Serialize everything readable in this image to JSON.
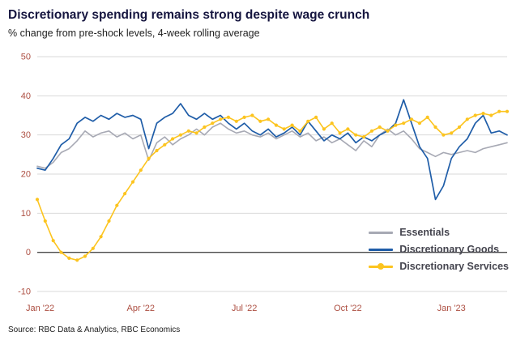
{
  "header": {
    "title": "Discretionary spending remains strong despite wage crunch",
    "subtitle": "% change from pre-shock levels, 4-week rolling average"
  },
  "source": "Source: RBC Data & Analytics, RBC Economics",
  "legend": {
    "items": [
      {
        "label": "Essentials",
        "color": "#a7a9b4",
        "marker": "line"
      },
      {
        "label": "Discretionary Goods",
        "color": "#1f5da8",
        "marker": "line"
      },
      {
        "label": "Discretionary Services",
        "color": "#fcc41f",
        "marker": "line-dot"
      }
    ]
  },
  "chart_data": {
    "type": "line",
    "title": "Discretionary spending remains strong despite wage crunch",
    "subtitle": "% change from pre-shock levels, 4-week rolling average",
    "x_unit": "week-index from Jan 2022",
    "x_range": [
      0,
      59
    ],
    "ylim": [
      -10,
      50
    ],
    "yticks": [
      50,
      40,
      30,
      20,
      10,
      0,
      -10
    ],
    "xticks": [
      {
        "label": "Jan '22",
        "x": 0
      },
      {
        "label": "Apr '22",
        "x": 13
      },
      {
        "label": "Jul '22",
        "x": 26
      },
      {
        "label": "Oct '22",
        "x": 39
      },
      {
        "label": "Jan '23",
        "x": 52
      }
    ],
    "grid": "horizontal-only",
    "zero_line": true,
    "colors": {
      "axis_labels": "#ad4f42",
      "grid": "#d9d9d9",
      "zero_line": "#4a4a4a"
    },
    "series": [
      {
        "name": "Essentials",
        "color": "#a7a9b4",
        "width": 1.6,
        "marker": "none",
        "values": [
          22,
          21.5,
          23,
          25.5,
          26.5,
          28.5,
          31,
          29.5,
          30.5,
          31,
          29.5,
          30.5,
          29,
          30,
          23.5,
          28,
          29.5,
          27.5,
          29,
          30,
          31.5,
          30,
          32,
          33,
          31.5,
          30.5,
          31,
          30,
          29.5,
          30.5,
          29,
          30,
          31,
          29.5,
          30.5,
          28.5,
          29.5,
          28,
          29,
          27.5,
          26,
          28.5,
          27,
          30,
          31.5,
          30,
          31,
          29,
          26.5,
          25.5,
          24.5,
          25.5,
          25,
          25.5,
          26,
          25.5,
          26.5,
          27,
          27.5,
          28
        ]
      },
      {
        "name": "Discretionary Goods",
        "color": "#1f5da8",
        "width": 1.7,
        "marker": "none",
        "values": [
          21.5,
          21,
          24,
          27.5,
          29,
          33,
          34.5,
          33.5,
          35,
          34,
          35.5,
          34.5,
          35,
          34,
          26.5,
          33,
          34.5,
          35.5,
          38,
          35,
          34,
          35.5,
          34,
          35,
          33,
          31.5,
          33,
          31,
          30,
          31.5,
          29.5,
          30.5,
          32,
          30,
          33.5,
          31,
          28.5,
          30,
          29,
          30.5,
          28,
          29.5,
          28.5,
          30,
          31,
          33,
          39,
          33,
          27,
          24,
          13.5,
          17,
          24,
          27,
          29,
          33,
          35,
          30.5,
          31,
          30
        ]
      },
      {
        "name": "Discretionary Services",
        "color": "#fcc41f",
        "width": 1.6,
        "marker": "circle",
        "values": [
          13.5,
          8,
          3,
          0,
          -1.5,
          -2,
          -1,
          1,
          4,
          8,
          12,
          15,
          18,
          21,
          24,
          26,
          27.5,
          29,
          30,
          31,
          30.5,
          32,
          33,
          34,
          34.5,
          33.5,
          34.5,
          35,
          33.5,
          34,
          32.5,
          31.5,
          32.5,
          31,
          33.5,
          34.5,
          31.5,
          33,
          30.5,
          31.5,
          30,
          29.5,
          31,
          32,
          31,
          32.5,
          33,
          34,
          33,
          34.5,
          32,
          30,
          30.5,
          32,
          34,
          35,
          35.5,
          35,
          36,
          36
        ]
      }
    ]
  }
}
